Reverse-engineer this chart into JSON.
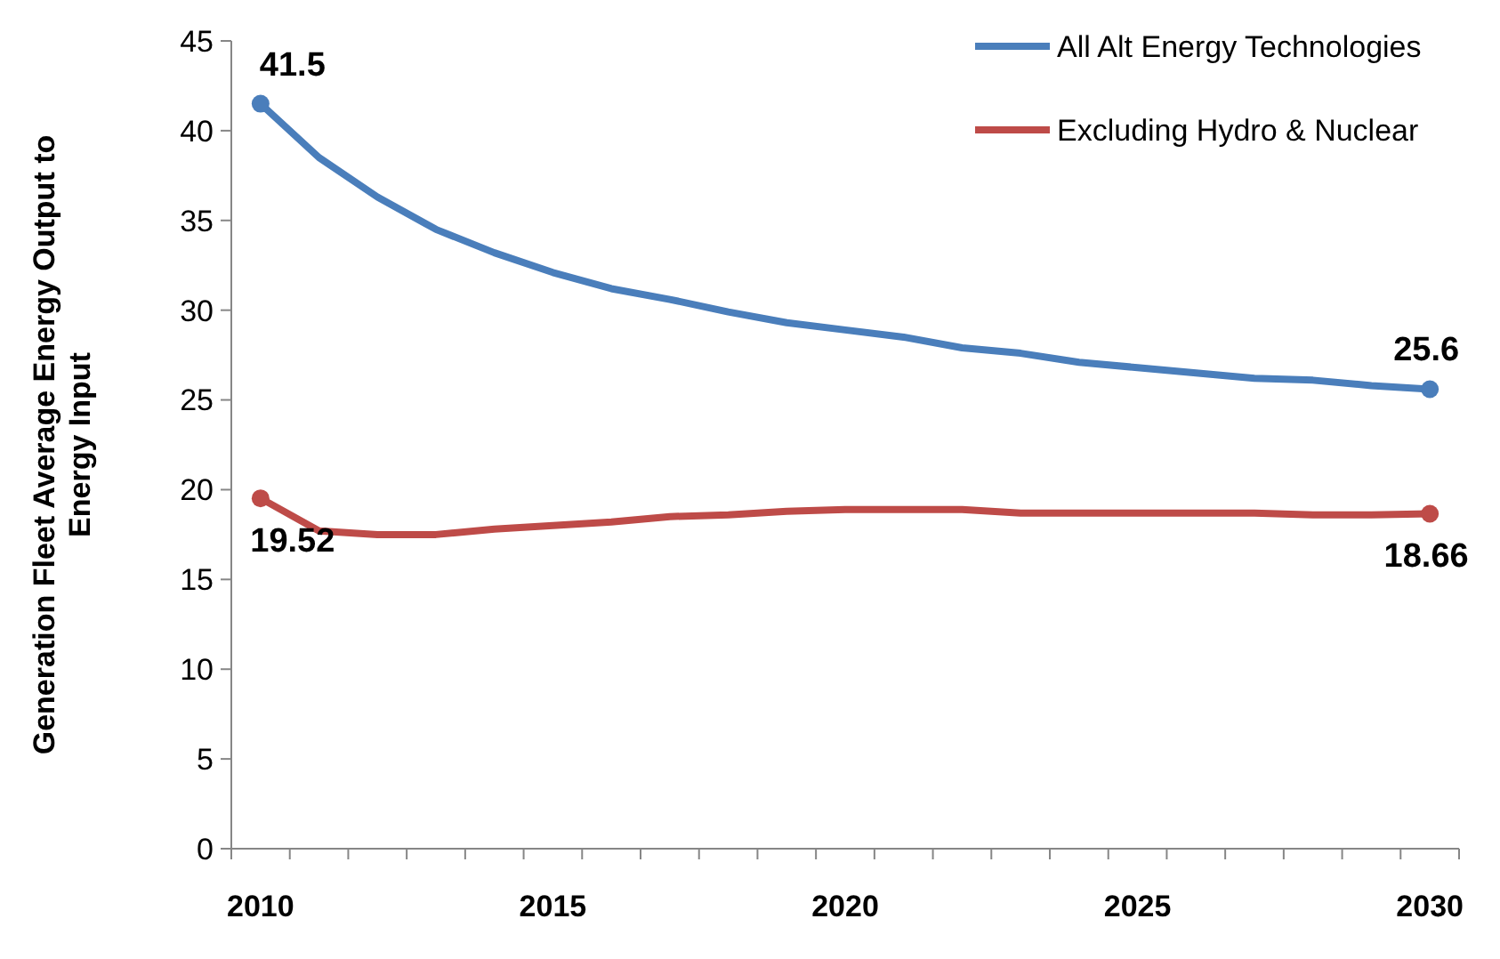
{
  "chart_data": {
    "type": "line",
    "ylabel": "Generation Fleet Average Energy Output to Energy Input",
    "categories": [
      "2010",
      null,
      null,
      null,
      null,
      "2015",
      null,
      null,
      null,
      null,
      "2020",
      null,
      null,
      null,
      null,
      "2025",
      null,
      null,
      null,
      null,
      "2030"
    ],
    "series": [
      {
        "name": "All Alt Energy Technologies",
        "color": "#4a7ebb",
        "values": [
          41.5,
          38.5,
          36.3,
          34.5,
          33.2,
          32.1,
          31.2,
          30.6,
          29.9,
          29.3,
          28.9,
          28.5,
          27.9,
          27.6,
          27.1,
          26.8,
          26.5,
          26.2,
          26.1,
          25.8,
          25.6
        ],
        "value_labels": [
          "41.5",
          null,
          null,
          null,
          null,
          null,
          null,
          null,
          null,
          null,
          null,
          null,
          null,
          null,
          null,
          null,
          null,
          null,
          null,
          null,
          "25.6"
        ]
      },
      {
        "name": "Excluding Hydro & Nuclear",
        "color": "#be4b48",
        "values": [
          19.52,
          17.7,
          17.5,
          17.5,
          17.8,
          18.0,
          18.2,
          18.5,
          18.6,
          18.8,
          18.9,
          18.9,
          18.9,
          18.7,
          18.7,
          18.7,
          18.7,
          18.7,
          18.6,
          18.6,
          18.66
        ],
        "value_labels": [
          "19.52",
          null,
          null,
          null,
          null,
          null,
          null,
          null,
          null,
          null,
          null,
          null,
          null,
          null,
          null,
          null,
          null,
          null,
          null,
          null,
          "18.66"
        ]
      }
    ],
    "ylim": [
      0,
      45
    ],
    "yticks": [
      0,
      5,
      10,
      15,
      20,
      25,
      30,
      35,
      40,
      45
    ],
    "grid": false,
    "legend": "top right",
    "line_style": "solid"
  }
}
